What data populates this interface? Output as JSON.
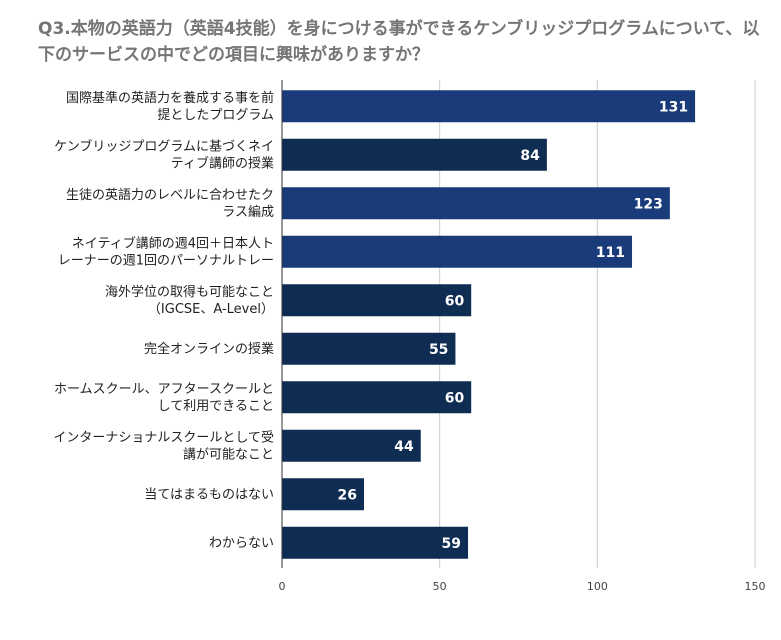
{
  "chart_data": {
    "type": "bar",
    "orientation": "horizontal",
    "title": "Q3.本物の英語力（英語4技能）を身につける事ができるケンブリッジプログラムについて、以下のサービスの中でどの項目に興味がありますか？",
    "categories": [
      "国際基準の英語力を養成する事を前\n提としたプログラム",
      "ケンブリッジプログラムに基づくネイ\nティブ講師の授業",
      "生徒の英語力のレベルに合わせたク\nラス編成",
      "ネイティブ講師の週4回＋日本人ト\nレーナーの週1回のパーソナルトレー",
      "海外学位の取得も可能なこと\n（IGCSE、A-Level）",
      "完全オンラインの授業",
      "ホームスクール、アフタースクールと\nして利用できること",
      "インターナショナルスクールとして受\n講が可能なこと",
      "当てはまるものはない",
      "わからない"
    ],
    "values": [
      131,
      84,
      123,
      111,
      60,
      55,
      60,
      44,
      26,
      59
    ],
    "highlight": [
      true,
      false,
      true,
      true,
      false,
      false,
      false,
      false,
      false,
      false
    ],
    "xlim": [
      0,
      150
    ],
    "xticks": [
      0,
      50,
      100,
      150
    ],
    "xlabel": "",
    "ylabel": "",
    "grid": "vertical",
    "legend": "none",
    "colors": {
      "highlight": "#1a3b7a",
      "normal": "#0f2d52",
      "grid": "#cccccc",
      "axis": "#333333"
    }
  }
}
